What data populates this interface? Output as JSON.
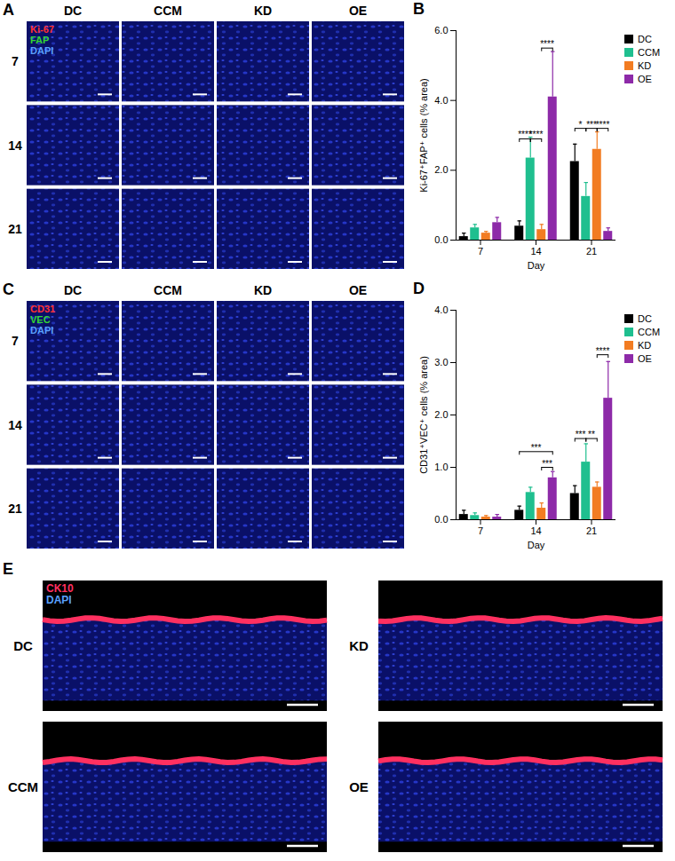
{
  "panels": [
    {
      "letter": "A",
      "type": "image_grid",
      "columns": [
        "DC",
        "CCM",
        "KD",
        "OE"
      ],
      "rows": [
        "7",
        "14",
        "21"
      ],
      "stains": [
        {
          "name": "Ki-67",
          "color": "#ff3030"
        },
        {
          "name": "FAP",
          "color": "#33d633"
        },
        {
          "name": "DAPI",
          "color": "#5aa0ff"
        }
      ]
    },
    {
      "letter": "C",
      "type": "image_grid",
      "columns": [
        "DC",
        "CCM",
        "KD",
        "OE"
      ],
      "rows": [
        "7",
        "14",
        "21"
      ],
      "stains": [
        {
          "name": "CD31",
          "color": "#ff3030"
        },
        {
          "name": "VEC",
          "color": "#33d633"
        },
        {
          "name": "DAPI",
          "color": "#5aa0ff"
        }
      ]
    },
    {
      "letter": "E",
      "type": "image_strips",
      "labels": [
        "DC",
        "KD",
        "CCM",
        "OE"
      ],
      "stains": [
        {
          "name": "CK10",
          "color": "#ff3060"
        },
        {
          "name": "DAPI",
          "color": "#5aa0ff"
        }
      ]
    }
  ],
  "chart_data": [
    {
      "type": "bar",
      "panel": "B",
      "x_label": "Day",
      "y_label": "Ki-67⁺FAP⁺ cells (% area)",
      "categories": [
        "7",
        "14",
        "21"
      ],
      "series": [
        {
          "name": "DC",
          "color": "#000000",
          "values": [
            0.1,
            0.4,
            2.25
          ],
          "errors": [
            0.1,
            0.15,
            0.5
          ]
        },
        {
          "name": "CCM",
          "color": "#1fbf8f",
          "values": [
            0.35,
            2.35,
            1.25
          ],
          "errors": [
            0.1,
            0.6,
            0.4
          ]
        },
        {
          "name": "KD",
          "color": "#f27c22",
          "values": [
            0.2,
            0.3,
            2.6
          ],
          "errors": [
            0.05,
            0.15,
            0.5
          ]
        },
        {
          "name": "OE",
          "color": "#8d2aa8",
          "values": [
            0.5,
            4.1,
            0.25
          ],
          "errors": [
            0.15,
            1.3,
            0.1
          ]
        }
      ],
      "ylim": [
        0,
        6
      ],
      "yticks": [
        0,
        2,
        4,
        6
      ],
      "legend": "right",
      "annotations": [
        {
          "category": "14",
          "from": "DC",
          "to": "CCM",
          "label": "****",
          "y": 2.9
        },
        {
          "category": "14",
          "from": "CCM",
          "to": "KD",
          "label": "****",
          "y": 2.9
        },
        {
          "category": "14",
          "from": "KD",
          "to": "OE",
          "label": "****",
          "y": 5.5
        },
        {
          "category": "21",
          "from": "DC",
          "to": "CCM",
          "label": "*",
          "y": 3.2
        },
        {
          "category": "21",
          "from": "CCM",
          "to": "KD",
          "label": "***",
          "y": 3.2
        },
        {
          "category": "21",
          "from": "KD",
          "to": "OE",
          "label": "****",
          "y": 3.2
        }
      ]
    },
    {
      "type": "bar",
      "panel": "D",
      "x_label": "Day",
      "y_label": "CD31⁺VEC⁺ cells (% area)",
      "categories": [
        "7",
        "14",
        "21"
      ],
      "series": [
        {
          "name": "DC",
          "color": "#000000",
          "values": [
            0.1,
            0.18,
            0.5
          ],
          "errors": [
            0.08,
            0.08,
            0.15
          ]
        },
        {
          "name": "CCM",
          "color": "#1fbf8f",
          "values": [
            0.08,
            0.52,
            1.1
          ],
          "errors": [
            0.05,
            0.1,
            0.35
          ]
        },
        {
          "name": "KD",
          "color": "#f27c22",
          "values": [
            0.05,
            0.22,
            0.62
          ],
          "errors": [
            0.03,
            0.1,
            0.1
          ]
        },
        {
          "name": "OE",
          "color": "#8d2aa8",
          "values": [
            0.05,
            0.8,
            2.32
          ],
          "errors": [
            0.05,
            0.12,
            0.7
          ]
        }
      ],
      "ylim": [
        0,
        4
      ],
      "yticks": [
        0,
        1,
        2,
        3,
        4
      ],
      "legend": "right",
      "annotations": [
        {
          "category": "14",
          "from": "DC",
          "to": "OE",
          "label": "***",
          "y": 1.3
        },
        {
          "category": "14",
          "from": "KD",
          "to": "OE",
          "label": "***",
          "y": 1.0
        },
        {
          "category": "21",
          "from": "DC",
          "to": "CCM",
          "label": "***",
          "y": 1.55
        },
        {
          "category": "21",
          "from": "CCM",
          "to": "KD",
          "label": "**",
          "y": 1.55
        },
        {
          "category": "21",
          "from": "KD",
          "to": "OE",
          "label": "****",
          "y": 3.15
        }
      ]
    }
  ]
}
